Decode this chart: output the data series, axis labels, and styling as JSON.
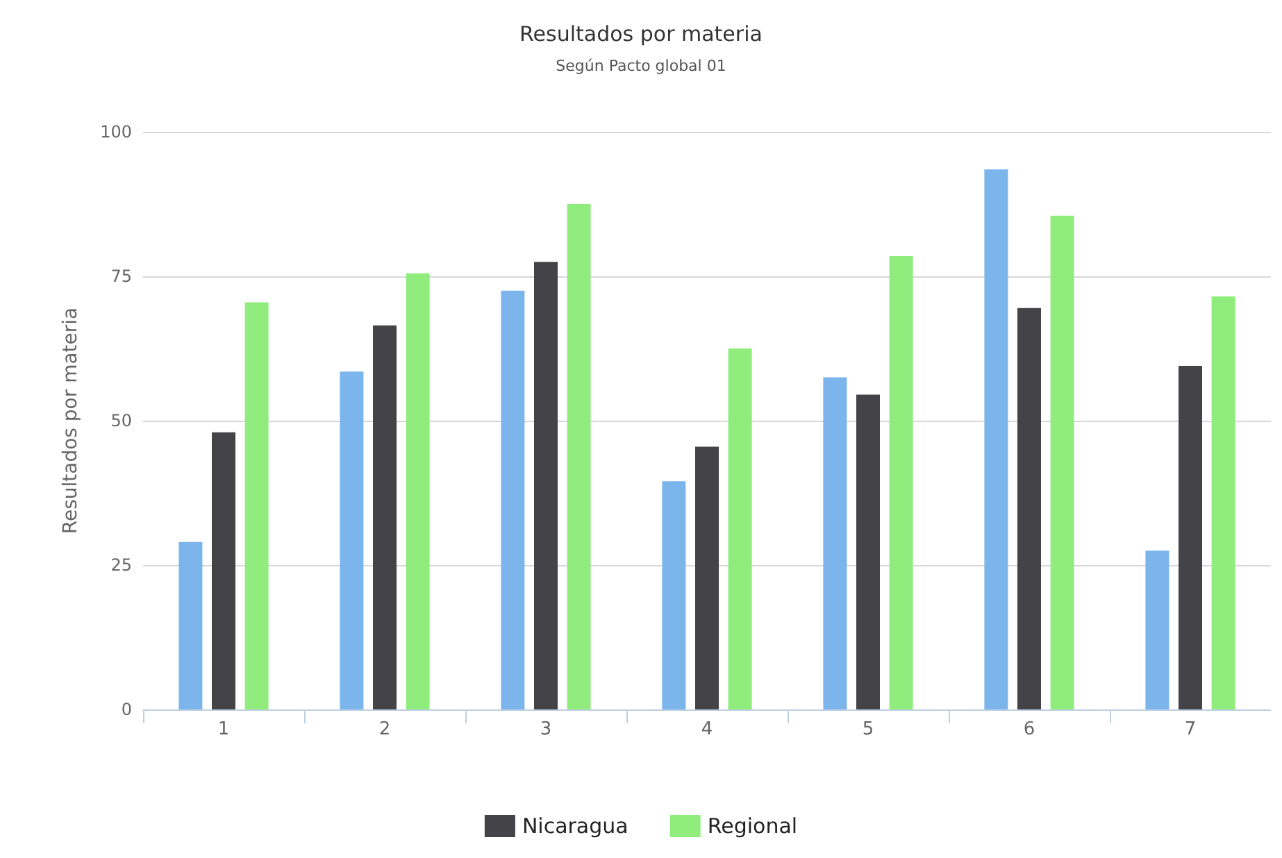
{
  "chart_data": {
    "type": "bar",
    "title": "Resultados por materia",
    "subtitle": "Según Pacto global 01",
    "ylabel": "Resultados por materia",
    "categories": [
      "1",
      "2",
      "3",
      "4",
      "5",
      "6",
      "7"
    ],
    "series": [
      {
        "color": "#7cb5ec",
        "values": [
          29,
          58.5,
          72.5,
          39.5,
          57.5,
          93.5,
          27.5
        ]
      },
      {
        "name": "Nicaragua",
        "color": "#434348",
        "values": [
          48,
          66.5,
          77.5,
          45.5,
          54.5,
          69.5,
          59.5
        ]
      },
      {
        "name": "Regional",
        "color": "#90ed7d",
        "values": [
          70.5,
          75.5,
          87.5,
          62.5,
          78.5,
          85.5,
          71.5
        ]
      }
    ],
    "ylim": [
      0,
      100
    ],
    "yticks": [
      0,
      25,
      50,
      75,
      100
    ],
    "grid": "y",
    "legend": "bottom"
  }
}
